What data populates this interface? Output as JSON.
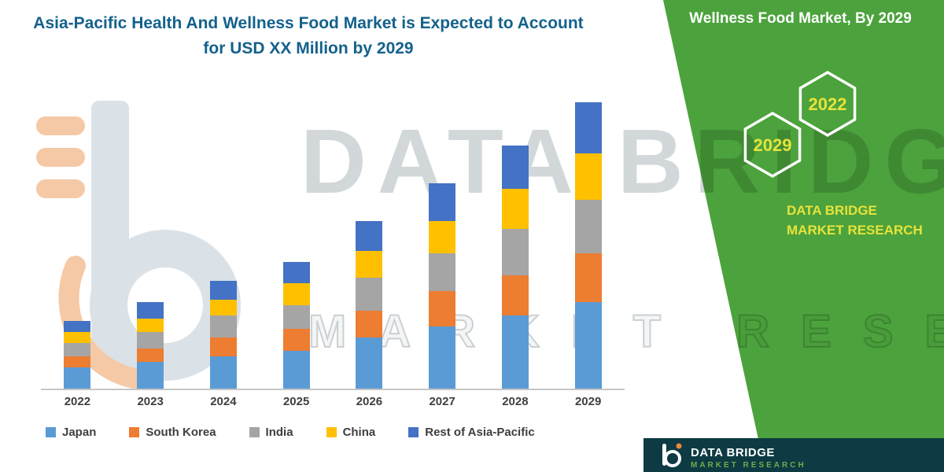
{
  "title": {
    "text": "Asia-Pacific Health And Wellness Food Market is Expected to Account for USD XX Million by 2029"
  },
  "side_panel": {
    "heading": "Wellness Food Market, By 2029",
    "hexagons": [
      {
        "label": "2029"
      },
      {
        "label": "2022"
      }
    ],
    "brand": "DATA BRIDGE MARKET RESEARCH"
  },
  "watermark": {
    "line1": "DATA BRIDGE",
    "line2": "MARKET RESEARCH"
  },
  "footer": {
    "brand": "DATA BRIDGE",
    "sub": "MARKET RESEARCH"
  },
  "colors": {
    "panel-green": "#4CA23C",
    "footer-teal": "#0D3A43",
    "title-blue": "#14618C",
    "brand-yellow": "#E7E33B",
    "axis-gray": "#C6C6C6",
    "label-gray": "#3F3F3F"
  },
  "chart_data": {
    "type": "bar",
    "stacked": true,
    "title": "Asia-Pacific Health And Wellness Food Market is Expected to Account for USD XX Million by 2029",
    "xlabel": "",
    "ylabel": "",
    "value_unit": "USD XX Million",
    "grid": false,
    "legend_position": "bottom",
    "categories": [
      "2022",
      "2023",
      "2024",
      "2025",
      "2026",
      "2027",
      "2028",
      "2029"
    ],
    "ylim": [
      0,
      110
    ],
    "series": [
      {
        "name": "Japan",
        "color": "#5B9BD5",
        "values": [
          8,
          10,
          12,
          14,
          19,
          23,
          27,
          32
        ]
      },
      {
        "name": "South Korea",
        "color": "#ED7D31",
        "values": [
          4,
          5,
          7,
          8,
          10,
          13,
          15,
          18
        ]
      },
      {
        "name": "India",
        "color": "#A5A5A5",
        "values": [
          5,
          6,
          8,
          9,
          12,
          14,
          17,
          20
        ]
      },
      {
        "name": "China",
        "color": "#FFC000",
        "values": [
          4,
          5,
          6,
          8,
          10,
          12,
          15,
          17
        ]
      },
      {
        "name": "Rest of Asia-Pacific",
        "color": "#4472C4",
        "values": [
          4,
          6,
          7,
          8,
          11,
          14,
          16,
          19
        ]
      }
    ]
  }
}
